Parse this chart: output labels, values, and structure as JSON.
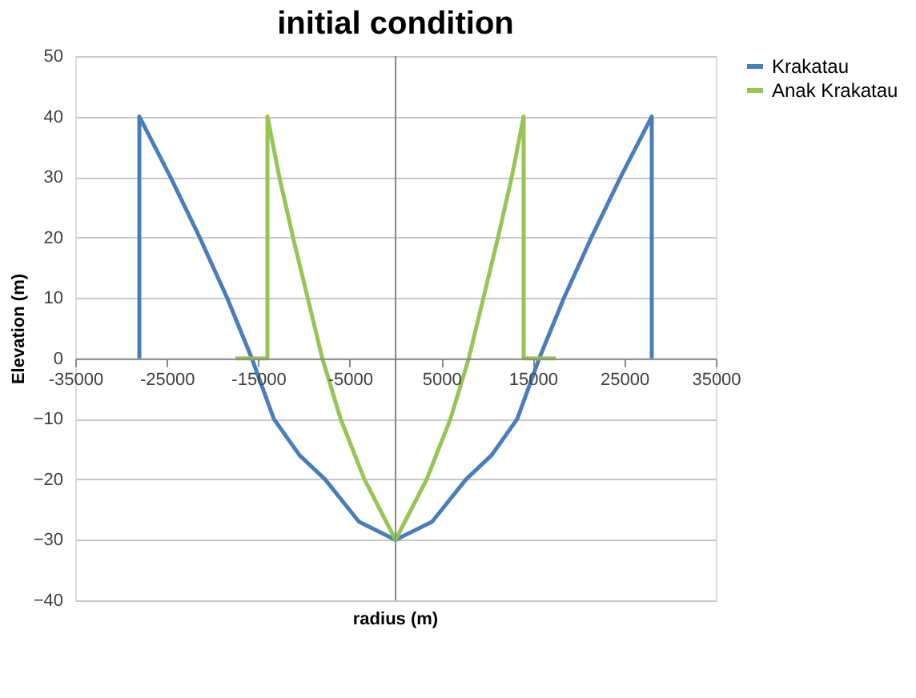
{
  "chart_data": {
    "type": "line",
    "title": "initial condition",
    "xlabel": "radius (m)",
    "ylabel": "Elevation (m)",
    "xlim": [
      -35000,
      35000
    ],
    "xticks": [
      -35000,
      -25000,
      -15000,
      -5000,
      5000,
      15000,
      25000,
      35000
    ],
    "ylim": [
      -40,
      50
    ],
    "yticks": [
      -40,
      -30,
      -20,
      -10,
      0,
      10,
      20,
      30,
      40,
      50
    ],
    "grid": "y",
    "legend": "right",
    "marker": "none",
    "line_style": "solid",
    "series": [
      {
        "name": "Krakatau",
        "color": "#4a7ebb",
        "x": [
          -28000,
          -28000,
          -24600,
          -21400,
          -18400,
          -15700,
          -13300,
          -10500,
          -7700,
          -4000,
          0,
          4000,
          7700,
          10500,
          13300,
          15700,
          18400,
          21400,
          24600,
          28000,
          28000
        ],
        "values": [
          0,
          40,
          30,
          20,
          10,
          0,
          -10,
          -16,
          -20,
          -27,
          -30,
          -27,
          -20,
          -16,
          -10,
          0,
          10,
          20,
          30,
          40,
          0
        ]
      },
      {
        "name": "Anak Krakatau",
        "color": "#98c454",
        "x": [
          -17500,
          -14000,
          -14000,
          -12700,
          -11200,
          -9600,
          -8000,
          -6000,
          -3400,
          0,
          3400,
          6000,
          8000,
          9600,
          11200,
          12700,
          14000,
          14000,
          17500
        ],
        "values": [
          0,
          0,
          40,
          30,
          20,
          10,
          0,
          -10,
          -20,
          -30,
          -20,
          -10,
          0,
          10,
          20,
          30,
          40,
          0,
          0
        ]
      }
    ]
  }
}
